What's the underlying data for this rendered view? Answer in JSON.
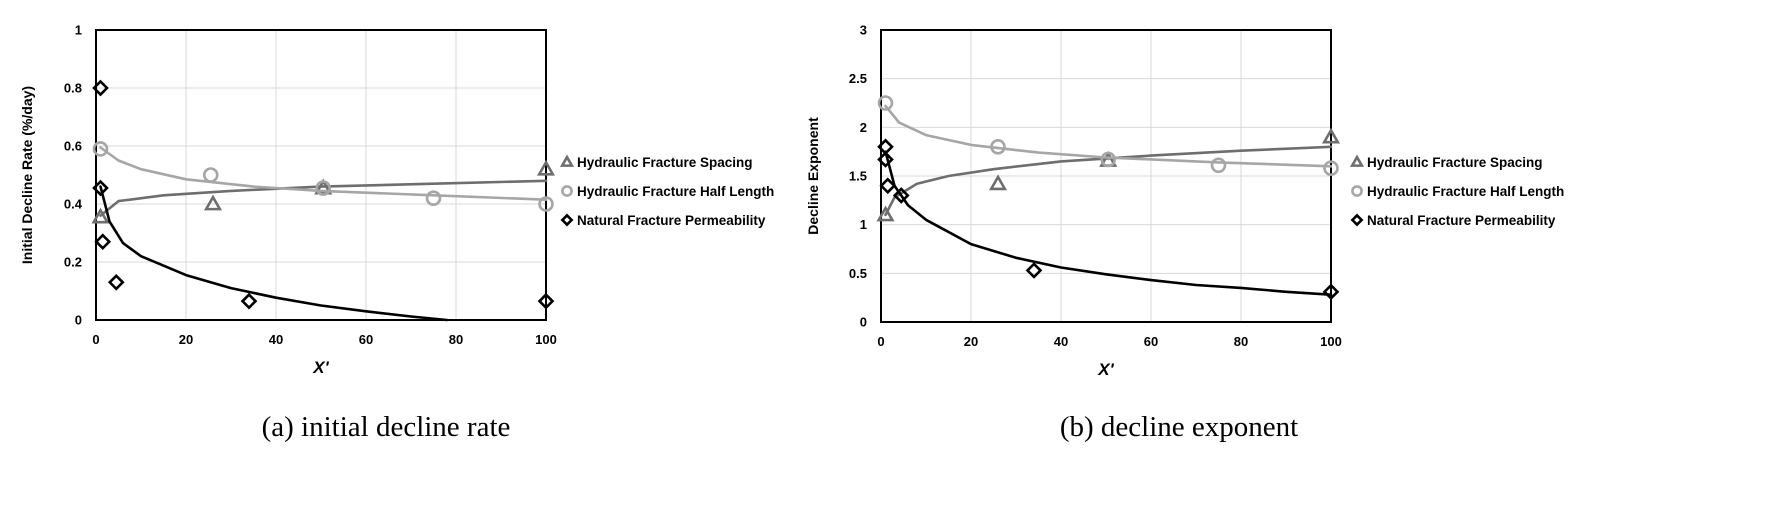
{
  "colors": {
    "spacing": "#6e6e6e",
    "half_length": "#a6a6a6",
    "permeability": "#000000",
    "grid": "#d9d9d9"
  },
  "chart_data": [
    {
      "type": "scatter",
      "caption": "(a) initial decline rate",
      "xlabel": "X'",
      "ylabel": "Initial Decline Rate (%/day)",
      "xlim": [
        0,
        100
      ],
      "ylim": [
        0,
        1
      ],
      "xticks": [
        "0",
        "20",
        "40",
        "60",
        "80",
        "100"
      ],
      "yticks": [
        "0",
        "0.2",
        "0.4",
        "0.6",
        "0.8",
        "1"
      ],
      "grid": true,
      "legend_position": "right",
      "series": [
        {
          "name": "Hydraulic Fracture Spacing",
          "marker": "triangle",
          "color": "#6e6e6e",
          "points": [
            [
              1,
              0.355
            ],
            [
              26,
              0.4
            ],
            [
              50.5,
              0.455
            ],
            [
              100,
              0.52
            ]
          ],
          "trend": [
            [
              1,
              0.36
            ],
            [
              5,
              0.41
            ],
            [
              15,
              0.43
            ],
            [
              30,
              0.445
            ],
            [
              50,
              0.46
            ],
            [
              75,
              0.47
            ],
            [
              100,
              0.48
            ]
          ]
        },
        {
          "name": "Hydraulic Fracture Half Length",
          "marker": "circle",
          "color": "#a6a6a6",
          "points": [
            [
              1,
              0.59
            ],
            [
              25.5,
              0.5
            ],
            [
              50.5,
              0.455
            ],
            [
              75,
              0.42
            ],
            [
              100,
              0.4
            ]
          ],
          "trend": [
            [
              1,
              0.595
            ],
            [
              5,
              0.55
            ],
            [
              10,
              0.52
            ],
            [
              20,
              0.485
            ],
            [
              35,
              0.46
            ],
            [
              50,
              0.445
            ],
            [
              75,
              0.43
            ],
            [
              100,
              0.415
            ]
          ]
        },
        {
          "name": "Natural Fracture Permeability",
          "marker": "diamond",
          "color": "#000000",
          "points": [
            [
              1,
              0.8
            ],
            [
              1,
              0.455
            ],
            [
              1.5,
              0.27
            ],
            [
              4.5,
              0.13
            ],
            [
              34,
              0.065
            ],
            [
              100,
              0.065
            ]
          ],
          "trend": [
            [
              1,
              0.46
            ],
            [
              3,
              0.34
            ],
            [
              6,
              0.265
            ],
            [
              10,
              0.22
            ],
            [
              20,
              0.155
            ],
            [
              30,
              0.11
            ],
            [
              40,
              0.077
            ],
            [
              50,
              0.05
            ],
            [
              60,
              0.03
            ],
            [
              70,
              0.012
            ],
            [
              78,
              0.0
            ]
          ]
        }
      ]
    },
    {
      "type": "scatter",
      "caption": "(b) decline exponent",
      "xlabel": "X'",
      "ylabel": "Decline Exponent",
      "xlim": [
        0,
        100
      ],
      "ylim": [
        0,
        3
      ],
      "xticks": [
        "0",
        "20",
        "40",
        "60",
        "80",
        "100"
      ],
      "yticks": [
        "0",
        "0.5",
        "1",
        "1.5",
        "2",
        "2.5",
        "3"
      ],
      "grid": true,
      "legend_position": "right",
      "series": [
        {
          "name": "Hydraulic Fracture Spacing",
          "marker": "triangle",
          "color": "#6e6e6e",
          "points": [
            [
              1,
              1.1
            ],
            [
              26,
              1.42
            ],
            [
              50.5,
              1.66
            ],
            [
              100,
              1.9
            ]
          ],
          "trend": [
            [
              1,
              1.1
            ],
            [
              3,
              1.28
            ],
            [
              8,
              1.42
            ],
            [
              15,
              1.5
            ],
            [
              25,
              1.57
            ],
            [
              40,
              1.65
            ],
            [
              60,
              1.71
            ],
            [
              80,
              1.76
            ],
            [
              100,
              1.8
            ]
          ]
        },
        {
          "name": "Hydraulic Fracture Half Length",
          "marker": "circle",
          "color": "#a6a6a6",
          "points": [
            [
              1,
              2.25
            ],
            [
              26,
              1.8
            ],
            [
              50.5,
              1.67
            ],
            [
              75,
              1.61
            ],
            [
              100,
              1.58
            ]
          ],
          "trend": [
            [
              1,
              2.22
            ],
            [
              4,
              2.05
            ],
            [
              10,
              1.92
            ],
            [
              20,
              1.82
            ],
            [
              35,
              1.74
            ],
            [
              50,
              1.69
            ],
            [
              75,
              1.64
            ],
            [
              100,
              1.6
            ]
          ]
        },
        {
          "name": "Natural Fracture Permeability",
          "marker": "diamond",
          "color": "#000000",
          "points": [
            [
              1,
              1.8
            ],
            [
              1,
              1.67
            ],
            [
              1.5,
              1.4
            ],
            [
              4.5,
              1.3
            ],
            [
              34,
              0.53
            ],
            [
              100,
              0.31
            ]
          ],
          "trend": [
            [
              1,
              1.75
            ],
            [
              3,
              1.4
            ],
            [
              6,
              1.2
            ],
            [
              10,
              1.05
            ],
            [
              20,
              0.8
            ],
            [
              30,
              0.66
            ],
            [
              40,
              0.56
            ],
            [
              50,
              0.49
            ],
            [
              60,
              0.43
            ],
            [
              70,
              0.38
            ],
            [
              80,
              0.35
            ],
            [
              90,
              0.31
            ],
            [
              100,
              0.28
            ]
          ]
        }
      ]
    }
  ]
}
